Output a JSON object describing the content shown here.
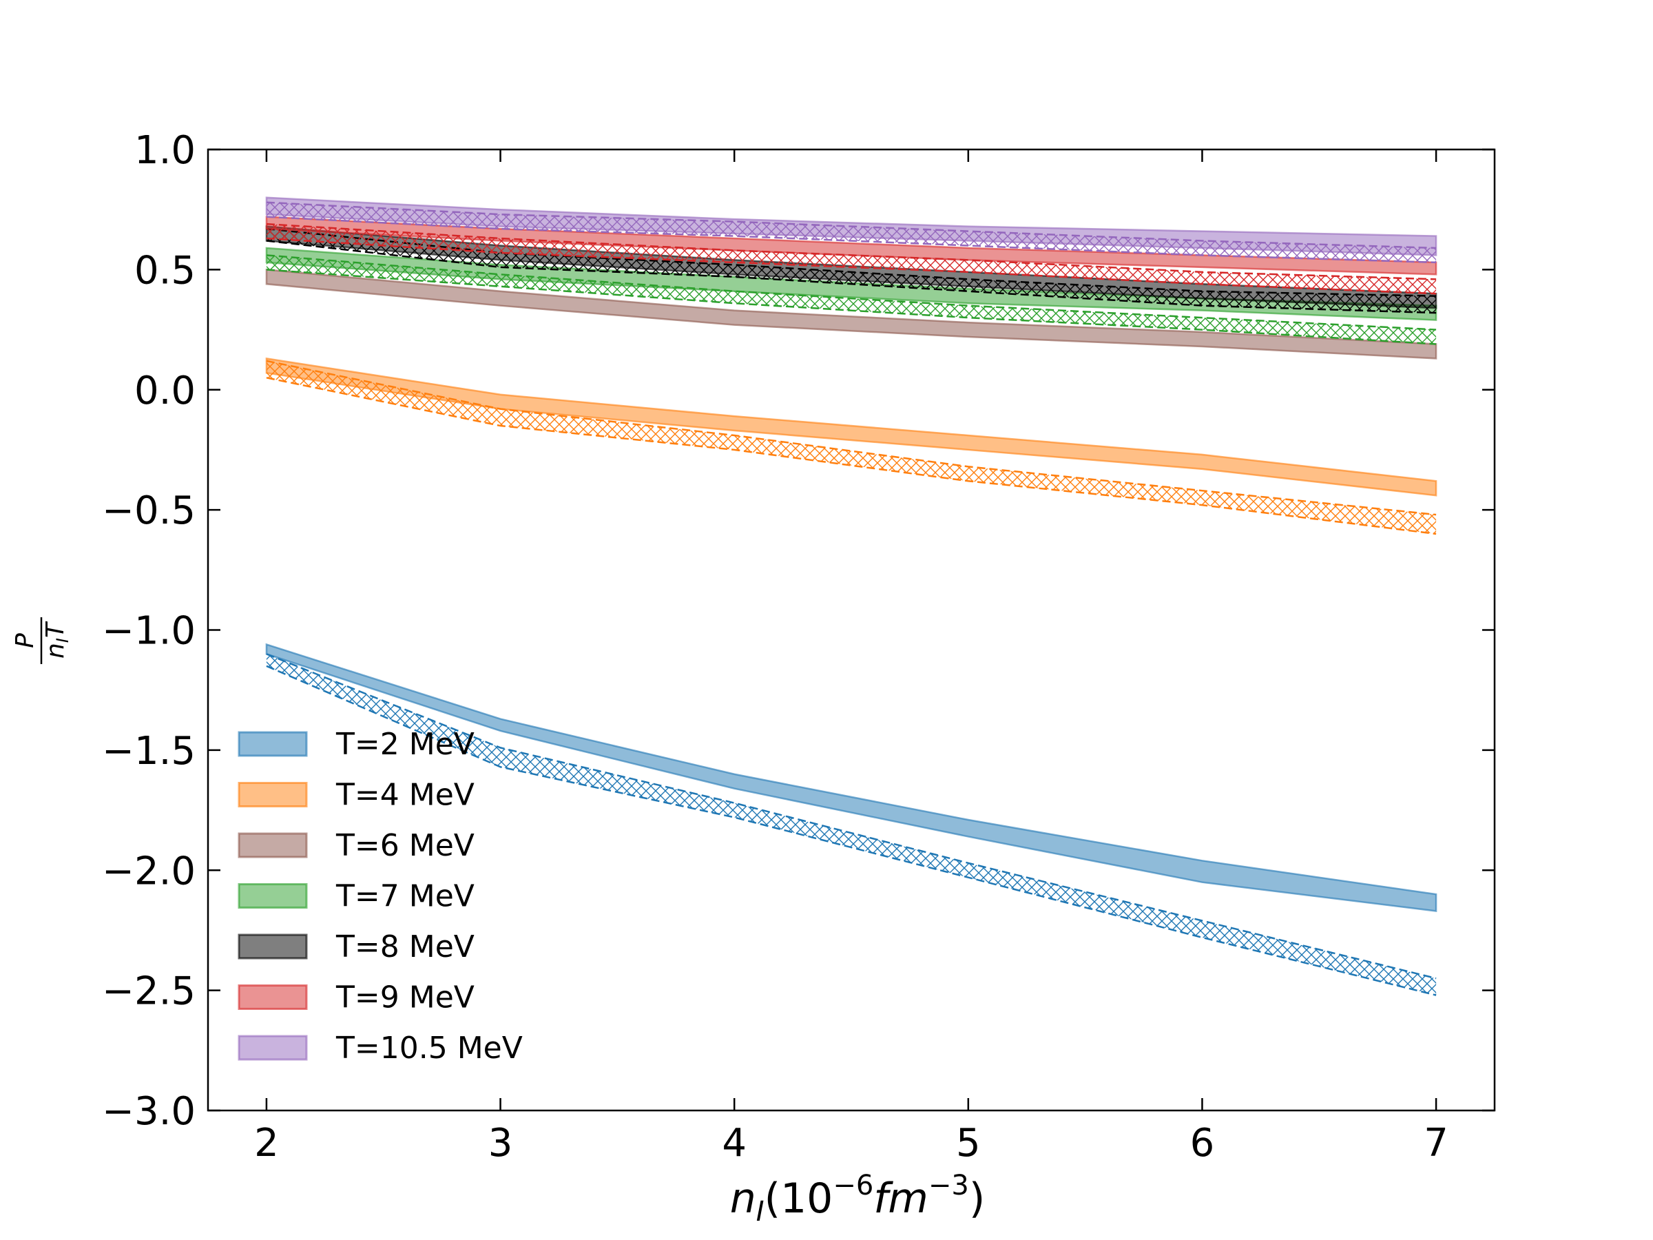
{
  "chart_data": {
    "type": "area",
    "title": "",
    "xlabel": "n_I(10^-6 fm^-3)",
    "ylabel": "P / (n_I T)",
    "xlim": [
      1.75,
      7.25
    ],
    "ylim": [
      -3.0,
      1.0
    ],
    "x_ticks": [
      "2",
      "3",
      "4",
      "5",
      "6",
      "7"
    ],
    "y_ticks": [
      "1.0",
      "0.5",
      "0.0",
      "−0.5",
      "−1.0",
      "−1.5",
      "−2.0",
      "−2.5",
      "−3.0"
    ],
    "legend_position": "lower-left",
    "grid": false,
    "x": [
      2,
      3,
      4,
      5,
      6,
      7
    ],
    "series": [
      {
        "name": "T=2 MeV",
        "color": "#1f77b4",
        "solid_band": {
          "lower": [
            -1.1,
            -1.42,
            -1.66,
            -1.86,
            -2.05,
            -2.17
          ],
          "upper": [
            -1.06,
            -1.37,
            -1.6,
            -1.79,
            -1.96,
            -2.1
          ]
        },
        "hatched_band": {
          "lower": [
            -1.15,
            -1.57,
            -1.78,
            -2.03,
            -2.28,
            -2.52
          ],
          "upper": [
            -1.1,
            -1.49,
            -1.72,
            -1.97,
            -2.21,
            -2.45
          ]
        }
      },
      {
        "name": "T=4 MeV",
        "color": "#ff7f0e",
        "solid_band": {
          "lower": [
            0.07,
            -0.08,
            -0.17,
            -0.25,
            -0.33,
            -0.44
          ],
          "upper": [
            0.13,
            -0.02,
            -0.11,
            -0.19,
            -0.27,
            -0.38
          ]
        },
        "hatched_band": {
          "lower": [
            0.05,
            -0.15,
            -0.25,
            -0.38,
            -0.48,
            -0.6
          ],
          "upper": [
            0.12,
            -0.08,
            -0.19,
            -0.32,
            -0.42,
            -0.52
          ]
        }
      },
      {
        "name": "T=6 MeV",
        "color": "#8c564b",
        "solid_band": {
          "lower": [
            0.44,
            0.35,
            0.27,
            0.22,
            0.18,
            0.13
          ],
          "upper": [
            0.5,
            0.41,
            0.33,
            0.28,
            0.24,
            0.19
          ]
        }
      },
      {
        "name": "T=7 MeV",
        "color": "#2ca02c",
        "solid_band": {
          "lower": [
            0.53,
            0.46,
            0.41,
            0.36,
            0.33,
            0.29
          ],
          "upper": [
            0.59,
            0.52,
            0.47,
            0.42,
            0.38,
            0.35
          ]
        },
        "hatched_band": {
          "lower": [
            0.5,
            0.43,
            0.36,
            0.3,
            0.25,
            0.19
          ],
          "upper": [
            0.56,
            0.48,
            0.41,
            0.35,
            0.3,
            0.25
          ]
        }
      },
      {
        "name": "T=8 MeV",
        "color": "#000000",
        "solid_band": {
          "lower": [
            0.62,
            0.54,
            0.48,
            0.43,
            0.38,
            0.34
          ],
          "upper": [
            0.68,
            0.6,
            0.54,
            0.49,
            0.44,
            0.4
          ]
        },
        "hatched_band": {
          "lower": [
            0.62,
            0.51,
            0.47,
            0.41,
            0.35,
            0.32
          ],
          "upper": [
            0.67,
            0.57,
            0.52,
            0.46,
            0.41,
            0.39
          ]
        }
      },
      {
        "name": "T=9 MeV",
        "color": "#d62728",
        "solid_band": {
          "lower": [
            0.67,
            0.62,
            0.58,
            0.54,
            0.51,
            0.48
          ],
          "upper": [
            0.72,
            0.67,
            0.63,
            0.59,
            0.56,
            0.53
          ]
        },
        "hatched_band": {
          "lower": [
            0.63,
            0.57,
            0.53,
            0.49,
            0.44,
            0.4
          ],
          "upper": [
            0.69,
            0.63,
            0.58,
            0.54,
            0.49,
            0.46
          ]
        }
      },
      {
        "name": "T=10.5 MeV",
        "color": "#9467bd",
        "solid_band": {
          "lower": [
            0.73,
            0.68,
            0.65,
            0.62,
            0.59,
            0.56
          ],
          "upper": [
            0.8,
            0.75,
            0.71,
            0.68,
            0.66,
            0.64
          ]
        },
        "hatched_band": {
          "lower": [
            0.72,
            0.67,
            0.64,
            0.6,
            0.56,
            0.53
          ],
          "upper": [
            0.78,
            0.73,
            0.7,
            0.66,
            0.62,
            0.59
          ]
        }
      }
    ]
  }
}
